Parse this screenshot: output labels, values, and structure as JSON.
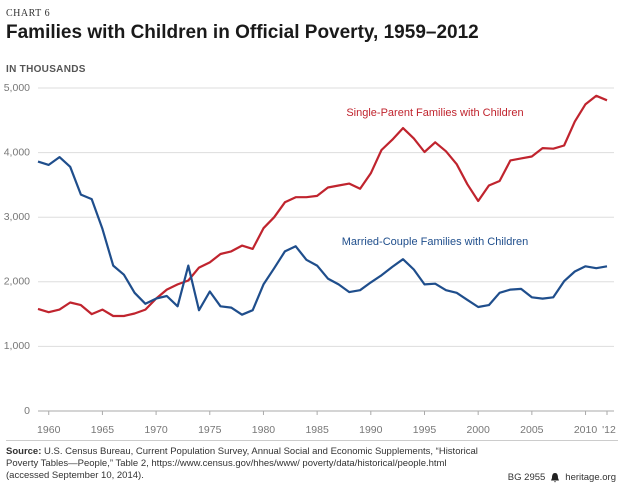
{
  "chart_data": {
    "type": "line",
    "kicker": "CHART 6",
    "title": "Families with Children in Official Poverty, 1959–2012",
    "y_label": "IN THOUSANDS",
    "x": [
      1959,
      1960,
      1961,
      1962,
      1963,
      1964,
      1965,
      1966,
      1967,
      1968,
      1969,
      1970,
      1971,
      1972,
      1973,
      1974,
      1975,
      1976,
      1977,
      1978,
      1979,
      1980,
      1981,
      1982,
      1983,
      1984,
      1985,
      1986,
      1987,
      1988,
      1989,
      1990,
      1991,
      1992,
      1993,
      1994,
      1995,
      1996,
      1997,
      1998,
      1999,
      2000,
      2001,
      2002,
      2003,
      2004,
      2005,
      2006,
      2007,
      2008,
      2009,
      2010,
      2011,
      2012
    ],
    "series": [
      {
        "name": "Single-Parent Families with Children",
        "color": "#c0242e",
        "values": [
          1580,
          1530,
          1570,
          1680,
          1640,
          1500,
          1570,
          1470,
          1470,
          1510,
          1570,
          1740,
          1880,
          1960,
          2020,
          2220,
          2300,
          2430,
          2470,
          2560,
          2510,
          2830,
          3000,
          3230,
          3310,
          3310,
          3330,
          3460,
          3490,
          3520,
          3440,
          3680,
          4040,
          4200,
          4380,
          4220,
          4010,
          4160,
          4020,
          3820,
          3510,
          3250,
          3490,
          3560,
          3880,
          3910,
          3940,
          4070,
          4060,
          4110,
          4480,
          4750,
          4880,
          4810
        ]
      },
      {
        "name": "Married-Couple Families with Children",
        "color": "#1f4e8c",
        "values": [
          3860,
          3810,
          3930,
          3780,
          3350,
          3280,
          2820,
          2250,
          2110,
          1830,
          1660,
          1740,
          1780,
          1620,
          2250,
          1560,
          1850,
          1620,
          1600,
          1490,
          1560,
          1960,
          2210,
          2470,
          2550,
          2340,
          2250,
          2050,
          1960,
          1840,
          1870,
          1990,
          2100,
          2230,
          2350,
          2190,
          1960,
          1970,
          1870,
          1830,
          1720,
          1610,
          1640,
          1830,
          1880,
          1890,
          1760,
          1740,
          1760,
          2010,
          2160,
          2240,
          2210,
          2240
        ]
      }
    ],
    "xlim": [
      1959,
      2012
    ],
    "xticks": [
      1960,
      1965,
      1970,
      1975,
      1980,
      1985,
      1990,
      1995,
      2000,
      2005,
      2010,
      {
        "value": 2012,
        "label": "'12"
      }
    ],
    "ylim": [
      0,
      5000
    ],
    "yticks": [
      0,
      {
        "value": 1000,
        "label": "1,000"
      },
      {
        "value": 2000,
        "label": "2,000"
      },
      {
        "value": 3000,
        "label": "3,000"
      },
      {
        "value": 4000,
        "label": "4,000"
      },
      {
        "value": 5000,
        "label": "5,000"
      }
    ],
    "grid": true,
    "source_label": "Source:",
    "source": "U.S. Census Bureau, Current Population Survey, Annual Social and Economic Supplements, “Historical Poverty Tables—People,” Table 2, https://www.census.gov/hhes/www/ poverty/data/historical/people.html (accessed September 10, 2014).",
    "report_id": "BG 2955",
    "site": "heritage.org"
  }
}
